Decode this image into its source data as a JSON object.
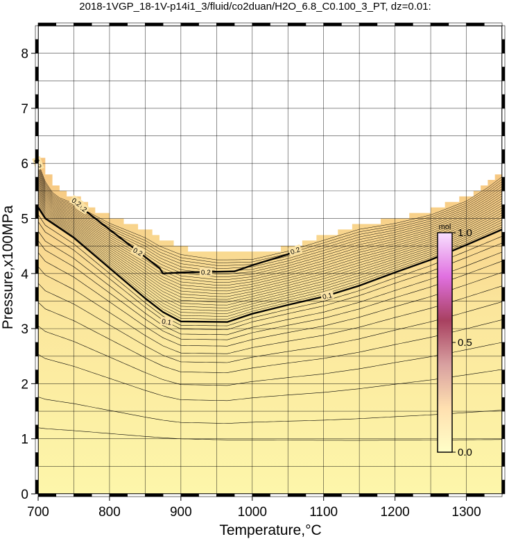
{
  "chart_data": {
    "type": "contour",
    "title": "2018-1VGP_18-1V-p14i1_3/fluid/co2duan/H2O_6.8_C0.100_3_PT, dz=0.01:",
    "xlabel": "Temperature,°C",
    "ylabel": "Pressure,x100MPa",
    "xlim": [
      700,
      1350
    ],
    "ylim": [
      0,
      8.5
    ],
    "xticks": [
      "700",
      "800",
      "900",
      "1000",
      "1100",
      "1200",
      "1300"
    ],
    "yticks": [
      "0",
      "1",
      "2",
      "3",
      "4",
      "5",
      "6",
      "7",
      "8"
    ],
    "grid": true,
    "contour_interval": 0.01,
    "upper_boundary": {
      "T": [
        700,
        710,
        720,
        730,
        750,
        770,
        800,
        830,
        850,
        870,
        880,
        900,
        950,
        1000,
        1050,
        1100,
        1150,
        1200,
        1250,
        1300,
        1330,
        1350
      ],
      "P": [
        6.1,
        5.75,
        5.55,
        5.45,
        5.35,
        5.2,
        5.0,
        4.85,
        4.75,
        4.6,
        4.55,
        4.45,
        4.35,
        4.35,
        4.5,
        4.7,
        4.9,
        5.0,
        5.15,
        5.4,
        5.65,
        5.85
      ]
    },
    "contours": [
      {
        "level": 0.1,
        "label": "0.1",
        "bold": true,
        "T": [
          700,
          710,
          750,
          800,
          850,
          875,
          900,
          965,
          1000,
          1050,
          1100,
          1150,
          1200,
          1250,
          1300,
          1350
        ],
        "P": [
          5.2,
          5.0,
          4.65,
          4.1,
          3.55,
          3.3,
          3.13,
          3.12,
          3.27,
          3.43,
          3.58,
          3.78,
          4.02,
          4.25,
          4.52,
          4.8
        ]
      },
      {
        "level": 0.2,
        "label": "0.2",
        "bold": true,
        "T": [
          765,
          800,
          840,
          870,
          875,
          900,
          975,
          1000,
          1050,
          1060
        ],
        "P": [
          5.15,
          4.8,
          4.4,
          4.1,
          4.0,
          4.02,
          4.04,
          4.15,
          4.35,
          4.42
        ]
      }
    ],
    "contour_labels": [
      "0.1",
      "0.1",
      "0.2",
      "0.2",
      "0.2",
      "0.2",
      "0.2",
      "0.2"
    ],
    "colorbar": {
      "unit": "mol",
      "min": 0.0,
      "max": 1.0,
      "tick_labels": [
        "0.0",
        "0.5",
        "1.0"
      ],
      "colors": [
        "#ffffc8",
        "#ffe0b0",
        "#d8a0a0",
        "#a84060",
        "#e070e0",
        "#f8e0ff"
      ]
    },
    "fill_color_low": "#fdf6aa",
    "fill_color_high": "#f6c47e"
  }
}
